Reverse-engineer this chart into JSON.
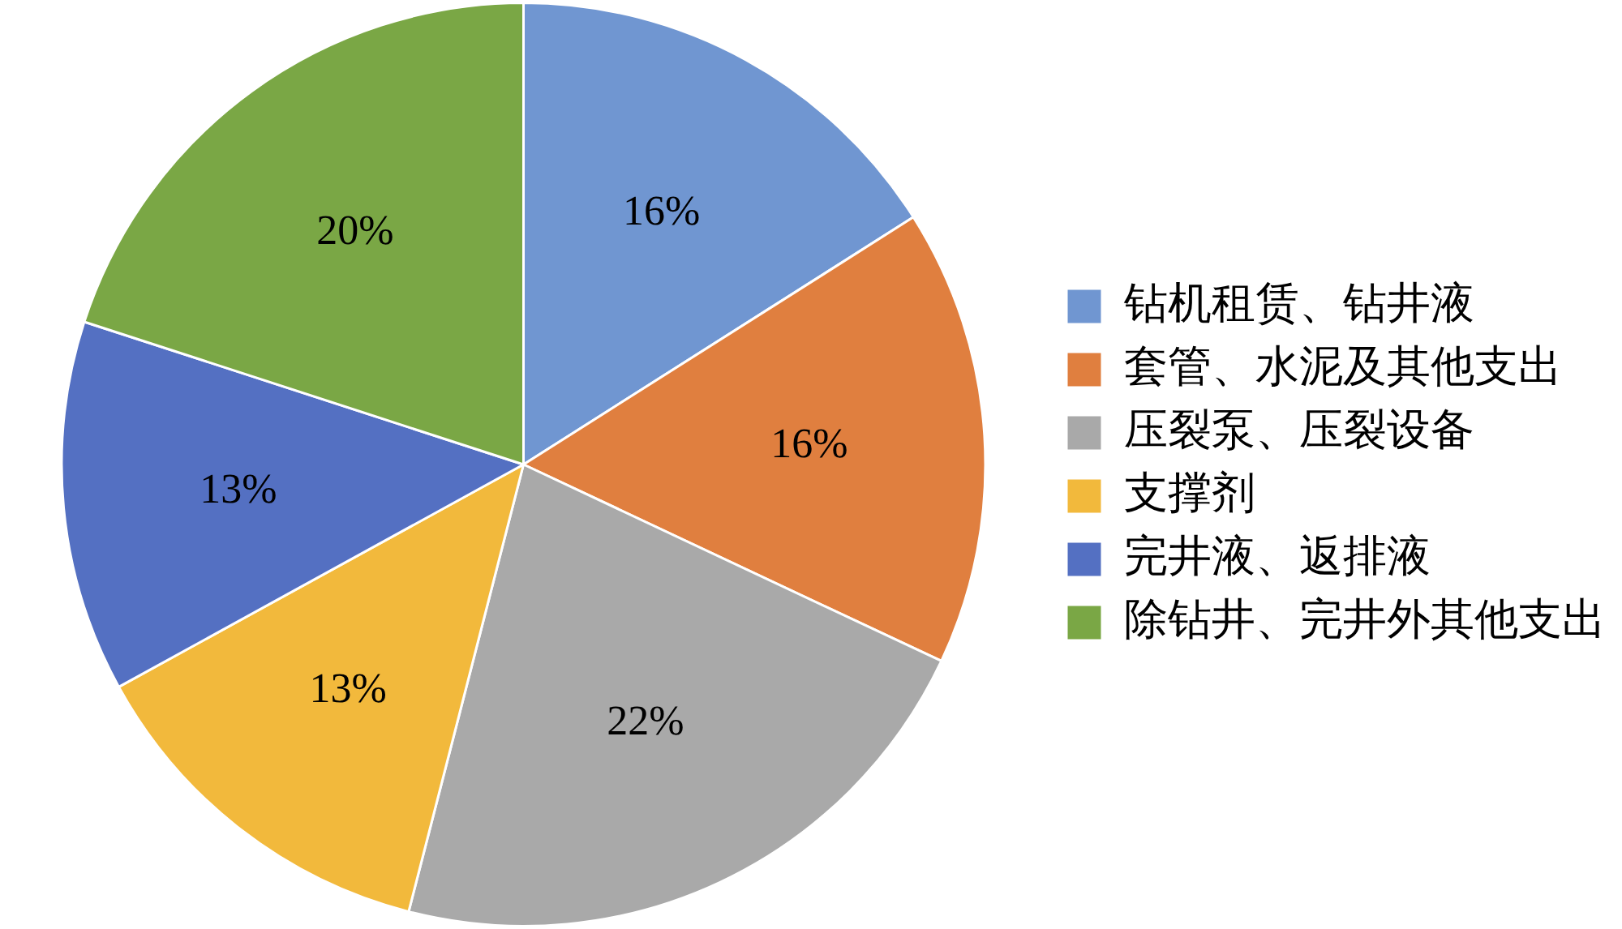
{
  "chart_data": {
    "type": "pie",
    "categories": [
      "钻机租赁、钻井液",
      "套管、水泥及其他支出",
      "压裂泵、压裂设备",
      "支撑剂",
      "完井液、返排液",
      "除钻井、完井外其他支出"
    ],
    "values": [
      16,
      16,
      22,
      13,
      13,
      20
    ],
    "colors": [
      "#7096d1",
      "#e07f3f",
      "#a9a9a9",
      "#f2b93c",
      "#5470c2",
      "#7aa745"
    ],
    "value_labels": [
      "16%",
      "16%",
      "22%",
      "13%",
      "13%",
      "20%"
    ],
    "legend": "right"
  }
}
